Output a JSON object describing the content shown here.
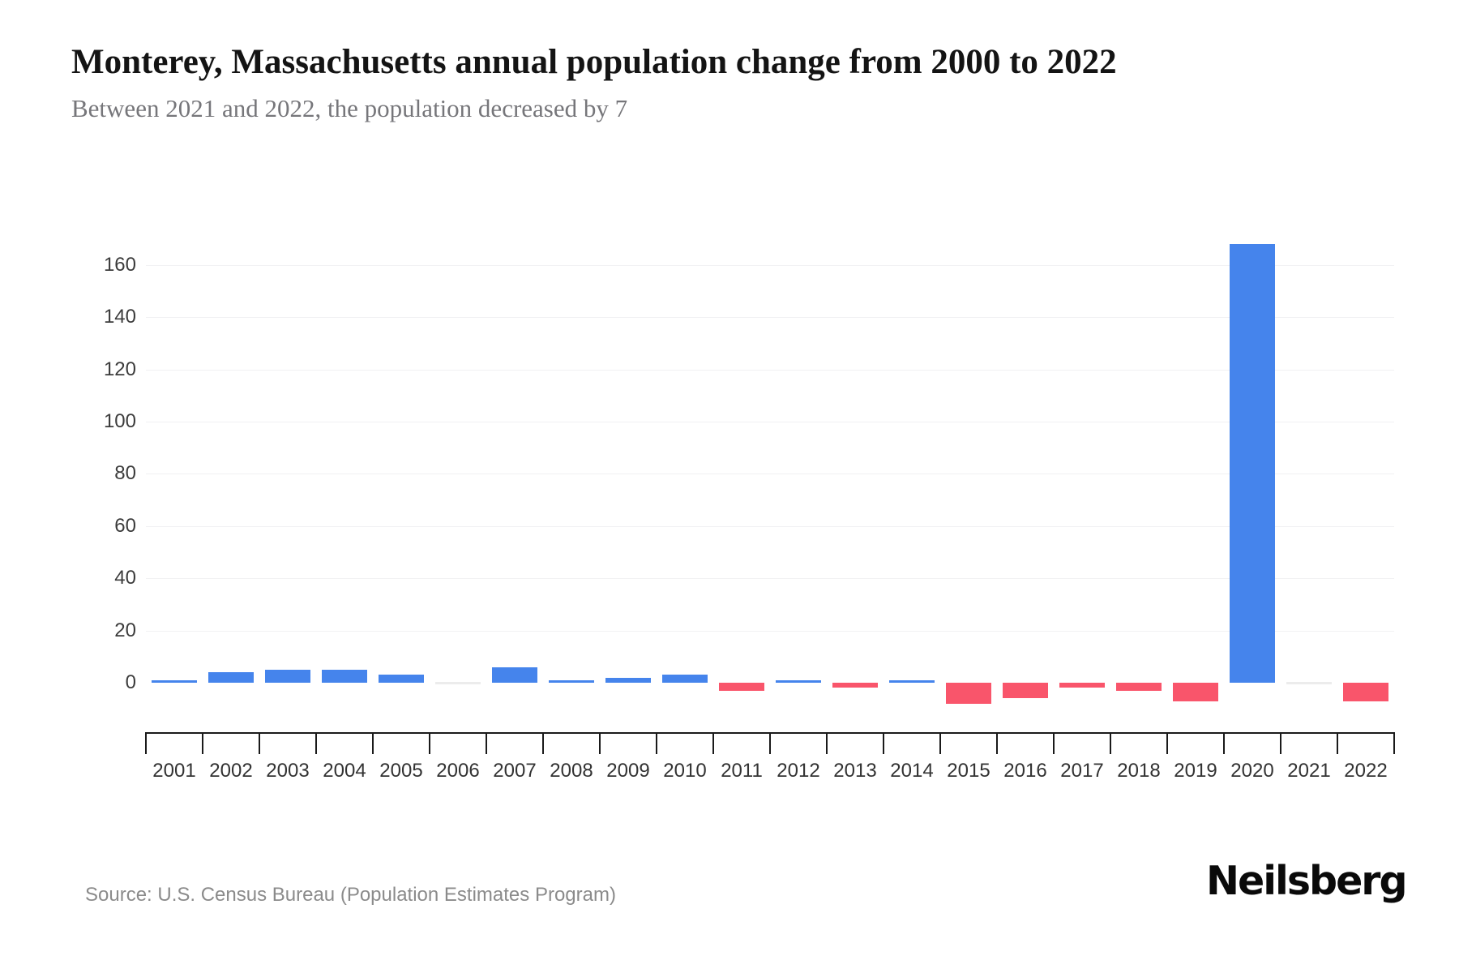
{
  "header": {
    "title": "Monterey, Massachusetts annual population change from 2000 to 2022",
    "subtitle": "Between 2021 and 2022, the population decreased by 7"
  },
  "footer": {
    "source": "Source: U.S. Census Bureau (Population Estimates Program)",
    "brand": "Neilsberg"
  },
  "chart_data": {
    "type": "bar",
    "title": "Monterey, Massachusetts annual population change from 2000 to 2022",
    "subtitle": "Between 2021 and 2022, the population decreased by 7",
    "categories": [
      "2001",
      "2002",
      "2003",
      "2004",
      "2005",
      "2006",
      "2007",
      "2008",
      "2009",
      "2010",
      "2011",
      "2012",
      "2013",
      "2014",
      "2015",
      "2016",
      "2017",
      "2018",
      "2019",
      "2020",
      "2021",
      "2022"
    ],
    "values": [
      1,
      4,
      5,
      5,
      3,
      0,
      6,
      1,
      2,
      3,
      -3,
      1,
      -2,
      1,
      -8,
      -6,
      -2,
      -3,
      -7,
      168,
      0,
      -7
    ],
    "xlabel": "",
    "ylabel": "",
    "yticks": [
      0,
      20,
      40,
      60,
      80,
      100,
      120,
      140,
      160
    ],
    "ylim": [
      -20,
      180
    ],
    "grid": "horizontal",
    "legend": "none",
    "colors": {
      "positive": "#4584EC",
      "negative": "#F9556B",
      "zero_marker": "#ececec"
    }
  }
}
